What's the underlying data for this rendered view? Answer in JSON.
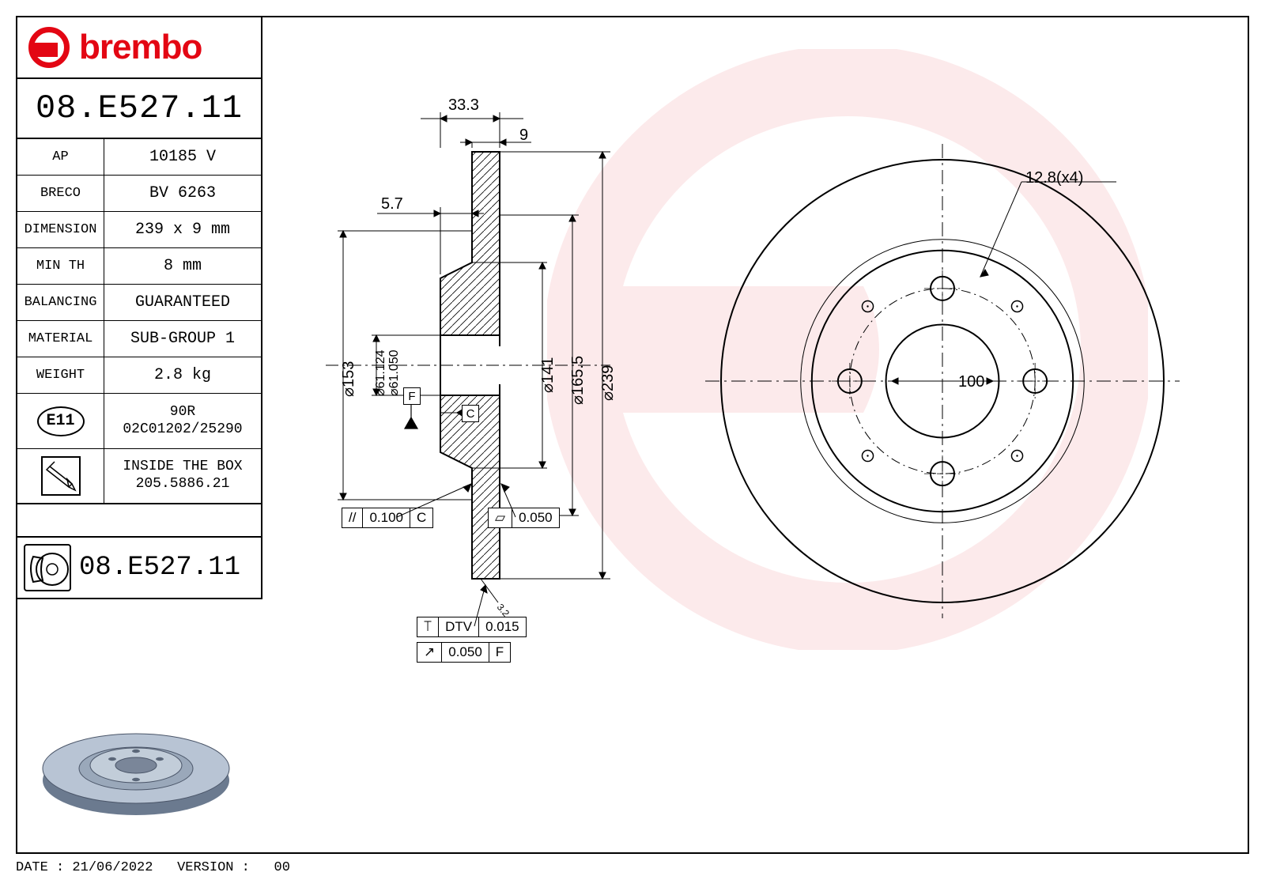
{
  "brand": "brembo",
  "brand_color": "#e30613",
  "part_number": "08.E527.11",
  "specs": [
    {
      "label": "AP",
      "value": "10185 V"
    },
    {
      "label": "BRECO",
      "value": "BV 6263"
    },
    {
      "label": "DIMENSION",
      "value": "239 x 9 mm"
    },
    {
      "label": "MIN TH",
      "value": "8 mm"
    },
    {
      "label": "BALANCING",
      "value": "GUARANTEED"
    },
    {
      "label": "MATERIAL",
      "value": "SUB-GROUP 1"
    },
    {
      "label": "WEIGHT",
      "value": "2.8 kg"
    }
  ],
  "approval": {
    "mark": "E11",
    "code_line1": "90R",
    "code_line2": "02C01202/25290"
  },
  "box_contents": {
    "label": "INSIDE THE BOX",
    "value": "205.5886.21"
  },
  "repeat_part_number": "08.E527.11",
  "footer": {
    "date_label": "DATE :",
    "date": "21/06/2022",
    "version_label": "VERSION :",
    "version": "00"
  },
  "section_view": {
    "dims": {
      "overall_depth": "33.3",
      "flange_thickness": "9",
      "hat_depth": "5.7",
      "rotor_od": "⌀239",
      "bolt_pcd_face": "⌀165.5",
      "hat_od": "⌀141",
      "pad_id": "⌀153",
      "bore_dia_upper": "⌀61.124",
      "bore_dia_lower": "⌀61.050",
      "chamfer": "3.2"
    },
    "datums": {
      "F": "F",
      "C": "C"
    },
    "tolerances": {
      "parallelism": {
        "symbol": "//",
        "value": "0.100",
        "datum": "C"
      },
      "flatness_face": {
        "symbol": "▱",
        "value": "0.050"
      },
      "dtv": {
        "symbol": "⟙",
        "label": "DTV",
        "value": "0.015"
      },
      "runout": {
        "symbol": "↗",
        "value": "0.050",
        "datum": "F"
      }
    }
  },
  "front_view": {
    "bolt_hole": "12.8(x4)",
    "pcd": "100",
    "outer_diameter": 239,
    "pad_inner_diameter": 153,
    "hat_diameter": 141,
    "bore_diameter": 61,
    "bolt_circle_diameter": 100,
    "bolt_hole_diameter": 12.8,
    "bolt_count": 4,
    "aux_hole_count": 4,
    "aux_hole_diameter": 6
  },
  "colors": {
    "line": "#000000",
    "hatch": "#000000",
    "thin": "#000000",
    "background": "#ffffff",
    "disc_render_top": "#b8c4d4",
    "disc_render_side": "#6b7a8f"
  },
  "line_weights": {
    "outline": 2,
    "thin": 1,
    "hatch": 0.8
  }
}
